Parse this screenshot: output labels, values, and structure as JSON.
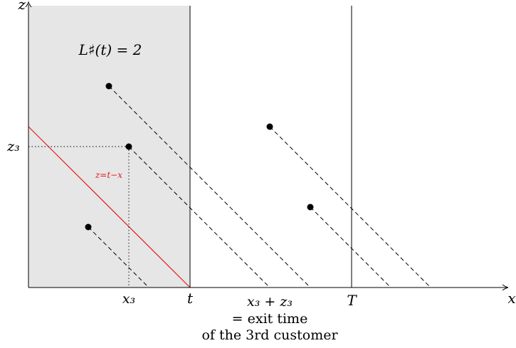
{
  "axes": {
    "x_label": "x",
    "z_label": "z"
  },
  "region": {
    "label": "L♯(t) = 2",
    "fill_color": "#e6e6e6"
  },
  "line": {
    "label": "z=t−x",
    "color": "#e41a1c"
  },
  "ticks": {
    "x3": "x₃",
    "t": "t",
    "x3_plus_z3": "x₃ + z₃",
    "T": "T",
    "z3": "z₃"
  },
  "caption": {
    "line1": "= exit time",
    "line2": "of the 3rd customer"
  }
}
